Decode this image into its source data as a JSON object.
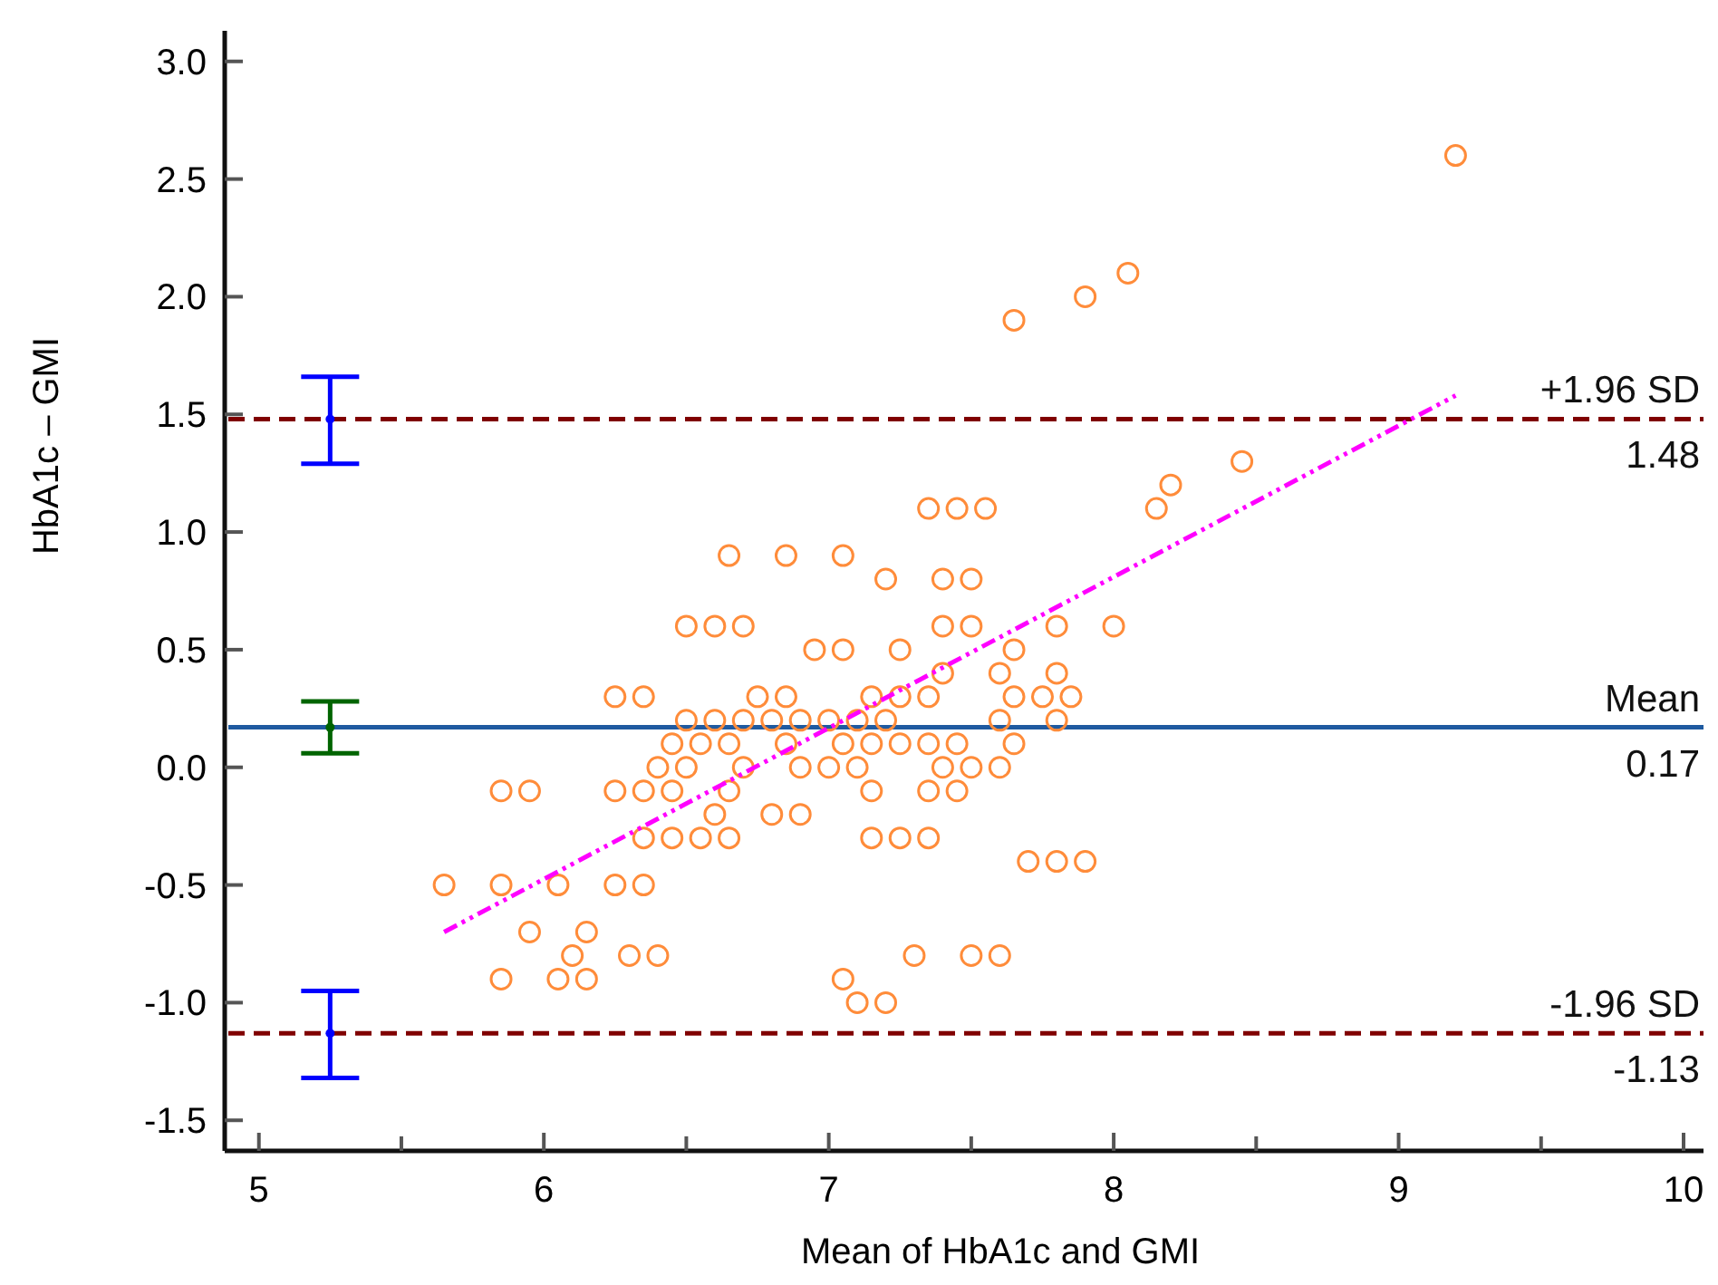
{
  "chart_data": {
    "type": "scatter",
    "xlabel": "Mean of HbA1c and GMI",
    "ylabel": "HbA1c – GMI",
    "xlim": [
      4.88,
      10.07
    ],
    "annotations": [
      {
        "text": "1.48",
        "y": 1.48
      },
      {
        "text": "0.17",
        "y": 0.17
      },
      {
        "text": "-1.13",
        "y": -1.13
      }
    ],
    "xticks": [
      5,
      {
        "value": 5.5,
        "label": null
      },
      6,
      {
        "value": 6.5,
        "label": null
      },
      7,
      {
        "value": 7.5,
        "label": null
      },
      8,
      {
        "value": 8.5,
        "label": null
      },
      9,
      {
        "value": 9.5,
        "label": null
      },
      10
    ],
    "ylim": [
      -1.63,
      3.13
    ],
    "yticks": [
      {
        "value": -1.5,
        "label": "-1.5"
      },
      {
        "value": -1,
        "label": "-1.0"
      },
      {
        "value": -0.5,
        "label": "-0.5"
      },
      {
        "value": 0,
        "label": "0.0"
      },
      {
        "value": 0.5,
        "label": "0.5"
      },
      {
        "value": 1,
        "label": "1.0"
      },
      {
        "value": 1.5,
        "label": "1.5"
      },
      {
        "value": 2,
        "label": "2.0"
      },
      {
        "value": 2.5,
        "label": "2.5"
      },
      {
        "value": 3,
        "label": "3.0"
      }
    ],
    "grid": false,
    "ref_lines": [
      {
        "axis": "y",
        "value": 1.48,
        "label": "+1.96 SD",
        "color": "#800000",
        "line_style": "dashed"
      },
      {
        "axis": "y",
        "value": 0.17,
        "label": "Mean",
        "color": "#1f5aa0",
        "line_style": "solid"
      },
      {
        "axis": "y",
        "value": -1.13,
        "label": "-1.96 SD",
        "color": "#800000",
        "line_style": "dashed"
      }
    ],
    "series": [
      {
        "color": "#ff8c3a",
        "marker": "circle",
        "x": [
          9.2,
          8.05,
          7.9,
          7.65,
          8.45,
          8.2,
          8.15,
          7.35,
          7.45,
          7.55,
          6.65,
          6.85,
          7.05,
          7.2,
          7.4,
          7.5,
          6.5,
          6.6,
          6.7,
          7.4,
          7.5,
          7.8,
          8.0,
          6.95,
          7.05,
          7.25,
          7.65,
          7.4,
          7.6,
          7.8,
          6.25,
          6.35,
          6.75,
          6.85,
          7.15,
          7.25,
          7.35,
          7.65,
          7.75,
          7.85,
          6.5,
          6.6,
          6.7,
          6.8,
          6.9,
          7.0,
          7.1,
          7.2,
          7.6,
          7.8,
          6.45,
          6.55,
          6.65,
          6.85,
          7.05,
          7.15,
          7.25,
          7.35,
          7.45,
          7.65,
          6.4,
          6.5,
          6.7,
          6.9,
          7.0,
          7.1,
          7.4,
          7.5,
          7.6,
          5.85,
          5.95,
          6.25,
          6.35,
          6.45,
          6.65,
          7.15,
          7.35,
          7.45,
          6.6,
          6.8,
          6.9,
          6.35,
          6.45,
          6.55,
          6.65,
          7.15,
          7.25,
          7.35,
          7.7,
          7.8,
          7.9,
          5.65,
          5.85,
          6.05,
          6.25,
          6.35,
          5.95,
          6.15,
          6.1,
          6.3,
          6.4,
          7.3,
          7.5,
          7.6,
          5.85,
          6.05,
          6.15,
          7.05,
          7.1,
          7.2
        ],
        "values": [
          2.6,
          2.1,
          2.0,
          1.9,
          1.3,
          1.2,
          1.1,
          1.1,
          1.1,
          1.1,
          0.9,
          0.9,
          0.9,
          0.8,
          0.8,
          0.8,
          0.6,
          0.6,
          0.6,
          0.6,
          0.6,
          0.6,
          0.6,
          0.5,
          0.5,
          0.5,
          0.5,
          0.4,
          0.4,
          0.4,
          0.3,
          0.3,
          0.3,
          0.3,
          0.3,
          0.3,
          0.3,
          0.3,
          0.3,
          0.3,
          0.2,
          0.2,
          0.2,
          0.2,
          0.2,
          0.2,
          0.2,
          0.2,
          0.2,
          0.2,
          0.1,
          0.1,
          0.1,
          0.1,
          0.1,
          0.1,
          0.1,
          0.1,
          0.1,
          0.1,
          0,
          0,
          0,
          0,
          0,
          0,
          0,
          0,
          0,
          -0.1,
          -0.1,
          -0.1,
          -0.1,
          -0.1,
          -0.1,
          -0.1,
          -0.1,
          -0.1,
          -0.2,
          -0.2,
          -0.2,
          -0.3,
          -0.3,
          -0.3,
          -0.3,
          -0.3,
          -0.3,
          -0.3,
          -0.4,
          -0.4,
          -0.4,
          -0.5,
          -0.5,
          -0.5,
          -0.5,
          -0.5,
          -0.7,
          -0.7,
          -0.8,
          -0.8,
          -0.8,
          -0.8,
          -0.8,
          -0.8,
          -0.9,
          -0.9,
          -0.9,
          -0.9,
          -1.0,
          -1.0
        ]
      },
      {
        "type": "line",
        "color": "#ff00ff",
        "marker": "none",
        "line_style": "dashed",
        "x": [
          5.65,
          9.2
        ],
        "values": [
          -0.7,
          1.58
        ]
      },
      {
        "type": "scatter",
        "marker": "dot",
        "x": [
          5.25,
          5.25,
          5.25
        ],
        "values": [
          1.48,
          0.17,
          -1.13
        ],
        "errors": [
          [
            1.29,
            1.66
          ],
          [
            0.06,
            0.28
          ],
          [
            -1.32,
            -0.95
          ]
        ],
        "colors": [
          "#0000ff",
          "#006400",
          "#0000ff"
        ]
      }
    ]
  }
}
